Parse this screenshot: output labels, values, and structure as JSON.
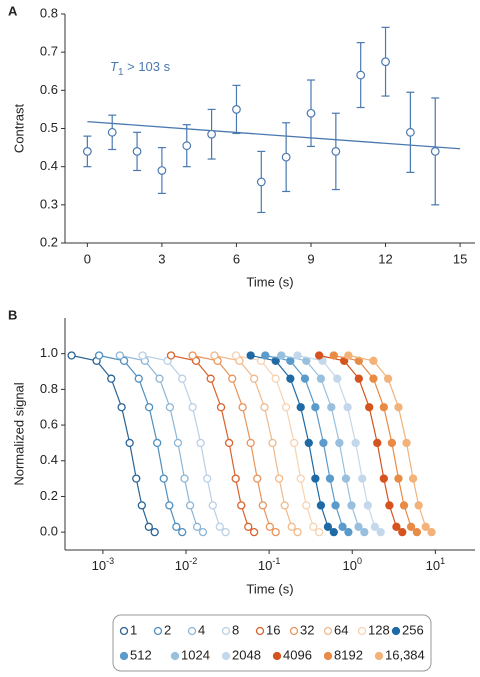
{
  "chart_data": [
    {
      "type": "scatter",
      "panel": "A",
      "x_label": "Time (s)",
      "y_label": "Contrast",
      "annotation": {
        "symbol": "T",
        "subscript": "1",
        "text": " > 103 s"
      },
      "color": "#4a78b0",
      "x": [
        0,
        1,
        2,
        3,
        4,
        5,
        6,
        7,
        8,
        9,
        10,
        11,
        12,
        13,
        14
      ],
      "values": [
        0.44,
        0.49,
        0.44,
        0.39,
        0.455,
        0.485,
        0.55,
        0.36,
        0.425,
        0.54,
        0.44,
        0.64,
        0.675,
        0.49,
        0.44
      ],
      "errors": [
        0.04,
        0.045,
        0.05,
        0.06,
        0.055,
        0.065,
        0.063,
        0.08,
        0.09,
        0.087,
        0.1,
        0.085,
        0.09,
        0.105,
        0.14
      ],
      "fit": {
        "x": [
          0,
          15
        ],
        "values": [
          0.518,
          0.447
        ]
      },
      "xlim": [
        -0.9,
        15.6
      ],
      "ylim": [
        0.2,
        0.8
      ],
      "xticks": [
        0,
        3,
        6,
        9,
        12,
        15
      ],
      "yticks": [
        0.2,
        0.3,
        0.4,
        0.5,
        0.6,
        0.7,
        0.8
      ]
    },
    {
      "type": "scatter",
      "panel": "B",
      "x_label": "Time (s)",
      "y_label": "Normalized signal",
      "x_scale": "log",
      "xlim": [
        0.00035,
        30
      ],
      "ylim": [
        -0.1,
        1.2
      ],
      "xticks": [
        {
          "value": 0.001,
          "label": "10",
          "exponent": "-3"
        },
        {
          "value": 0.01,
          "label": "10",
          "exponent": "-2"
        },
        {
          "value": 0.1,
          "label": "10",
          "exponent": "-1"
        },
        {
          "value": 1,
          "label": "10",
          "exponent": "0"
        },
        {
          "value": 10,
          "label": "10",
          "exponent": "1"
        }
      ],
      "yticks": [
        {
          "value": 0,
          "label": "0.0"
        },
        {
          "value": 0.2,
          "label": "0.2"
        },
        {
          "value": 0.4,
          "label": "0.4"
        },
        {
          "value": 0.6,
          "label": "0.6"
        },
        {
          "value": 0.8,
          "label": "0.8"
        },
        {
          "value": 1,
          "label": "1.0"
        }
      ],
      "series": [
        {
          "name": "1",
          "color": "#2a6496",
          "marker": "open",
          "x": [
            0.00042,
            0.00084,
            0.00126,
            0.00168,
            0.0021,
            0.00252,
            0.00294,
            0.00357,
            0.0042
          ],
          "values": [
            0.99,
            0.96,
            0.86,
            0.7,
            0.5,
            0.3,
            0.15,
            0.03,
            0
          ]
        },
        {
          "name": "2",
          "color": "#4f8fbf",
          "marker": "open",
          "x": [
            0.0009,
            0.0018,
            0.0027,
            0.0036,
            0.0045,
            0.0054,
            0.0063,
            0.00765,
            0.009
          ],
          "values": [
            0.99,
            0.96,
            0.86,
            0.7,
            0.5,
            0.3,
            0.15,
            0.03,
            0
          ]
        },
        {
          "name": "4",
          "color": "#8db6d6",
          "marker": "open",
          "x": [
            0.0016,
            0.0032,
            0.0048,
            0.0064,
            0.008,
            0.0096,
            0.0112,
            0.0136,
            0.016
          ],
          "values": [
            0.99,
            0.96,
            0.86,
            0.7,
            0.5,
            0.3,
            0.15,
            0.03,
            0
          ]
        },
        {
          "name": "8",
          "color": "#b9d0e6",
          "marker": "open",
          "x": [
            0.003,
            0.006,
            0.009,
            0.012,
            0.015,
            0.018,
            0.021,
            0.0255,
            0.03
          ],
          "values": [
            0.99,
            0.96,
            0.86,
            0.7,
            0.5,
            0.3,
            0.15,
            0.03,
            0
          ]
        },
        {
          "name": "16",
          "color": "#d9622b",
          "marker": "open",
          "x": [
            0.0066,
            0.0132,
            0.0198,
            0.0264,
            0.033,
            0.0396,
            0.0462,
            0.0561,
            0.066
          ],
          "values": [
            0.99,
            0.96,
            0.86,
            0.7,
            0.5,
            0.3,
            0.15,
            0.03,
            0
          ]
        },
        {
          "name": "32",
          "color": "#e8955c",
          "marker": "open",
          "x": [
            0.012,
            0.024,
            0.036,
            0.048,
            0.06,
            0.072,
            0.084,
            0.102,
            0.12
          ],
          "values": [
            0.99,
            0.96,
            0.86,
            0.7,
            0.5,
            0.3,
            0.15,
            0.03,
            0
          ]
        },
        {
          "name": "64",
          "color": "#f0b98a",
          "marker": "open",
          "x": [
            0.022,
            0.044,
            0.066,
            0.088,
            0.11,
            0.132,
            0.154,
            0.187,
            0.22
          ],
          "values": [
            0.99,
            0.96,
            0.86,
            0.7,
            0.5,
            0.3,
            0.15,
            0.03,
            0
          ]
        },
        {
          "name": "128",
          "color": "#f6d3b0",
          "marker": "open",
          "x": [
            0.04,
            0.08,
            0.12,
            0.16,
            0.2,
            0.24,
            0.28,
            0.34,
            0.4
          ],
          "values": [
            0.99,
            0.96,
            0.86,
            0.7,
            0.5,
            0.3,
            0.15,
            0.03,
            0
          ]
        },
        {
          "name": "256",
          "color": "#1f6aa5",
          "marker": "filled",
          "x": [
            0.06,
            0.12,
            0.18,
            0.24,
            0.3,
            0.36,
            0.42,
            0.51,
            0.6
          ],
          "values": [
            0.99,
            0.96,
            0.86,
            0.7,
            0.5,
            0.3,
            0.15,
            0.03,
            0
          ]
        },
        {
          "name": "512",
          "color": "#5b9bcb",
          "marker": "filled",
          "x": [
            0.09,
            0.18,
            0.27,
            0.36,
            0.45,
            0.54,
            0.63,
            0.765,
            0.9
          ],
          "values": [
            0.99,
            0.96,
            0.86,
            0.7,
            0.5,
            0.3,
            0.15,
            0.03,
            0
          ]
        },
        {
          "name": "1024",
          "color": "#98c0de",
          "marker": "filled",
          "x": [
            0.14,
            0.28,
            0.42,
            0.56,
            0.7,
            0.84,
            0.98,
            1.19,
            1.4
          ],
          "values": [
            0.99,
            0.96,
            0.86,
            0.7,
            0.5,
            0.3,
            0.15,
            0.03,
            0
          ]
        },
        {
          "name": "2048",
          "color": "#c3d8ea",
          "marker": "filled",
          "x": [
            0.22,
            0.44,
            0.66,
            0.88,
            1.1,
            1.32,
            1.54,
            1.87,
            2.2
          ],
          "values": [
            0.99,
            0.96,
            0.86,
            0.7,
            0.5,
            0.3,
            0.15,
            0.03,
            0
          ]
        },
        {
          "name": "4096",
          "color": "#d4531f",
          "marker": "filled",
          "x": [
            0.4,
            0.8,
            1.2,
            1.6,
            2,
            2.4,
            2.8,
            3.4,
            4
          ],
          "values": [
            0.99,
            0.96,
            0.86,
            0.7,
            0.5,
            0.3,
            0.15,
            0.03,
            0
          ]
        },
        {
          "name": "8192",
          "color": "#e88b45",
          "marker": "filled",
          "x": [
            0.6,
            1.2,
            1.8,
            2.4,
            3,
            3.6,
            4.2,
            5.1,
            6
          ],
          "values": [
            0.99,
            0.96,
            0.86,
            0.7,
            0.5,
            0.3,
            0.15,
            0.03,
            0
          ]
        },
        {
          "name": "16,384",
          "color": "#f2b27a",
          "marker": "filled",
          "x": [
            0.9,
            1.8,
            2.7,
            3.6,
            4.5,
            5.4,
            6.3,
            7.65,
            9
          ],
          "values": [
            0.99,
            0.96,
            0.86,
            0.7,
            0.5,
            0.3,
            0.15,
            0.03,
            0
          ]
        }
      ]
    }
  ]
}
